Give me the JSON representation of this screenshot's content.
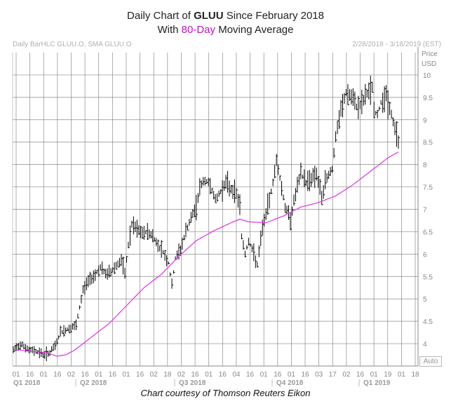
{
  "title": {
    "line1_pre": "Daily Chart of ",
    "ticker": "GLUU",
    "line1_post": " Since February 2018",
    "line2_pre": "With ",
    "highlight": "80-Day",
    "line2_post": " Moving Average"
  },
  "header": {
    "left": "Daily BarHLC GLUU.O, SMA GLUU.O",
    "right": "2/28/2018 - 3/18/2019 (EST)"
  },
  "axis": {
    "price_label": "Price",
    "currency_label": "USD",
    "auto_label": "Auto"
  },
  "caption": "Chart courtesy of Thomson Reuters Eikon",
  "colors": {
    "price_bars": "#000000",
    "sma": "#e040e0",
    "grid": "#8a8a8a",
    "highlight_text": "#c013c0"
  },
  "chart_data": {
    "type": "line",
    "chart_style": "ohlc-bars with moving average",
    "ylim": [
      3.5,
      10.5
    ],
    "yticks": [
      4,
      4.5,
      5,
      5.5,
      6,
      6.5,
      7,
      7.5,
      8,
      8.5,
      9,
      9.5,
      10
    ],
    "ytick_labels": [
      "4",
      "4.5",
      "5",
      "5.5",
      "6",
      "6.5",
      "7",
      "7.5",
      "8",
      "8.5",
      "9",
      "9.5",
      "10"
    ],
    "xtick_labels": [
      "01",
      "16",
      "01",
      "16",
      "02",
      "16",
      "01",
      "16",
      "01",
      "16",
      "02",
      "18",
      "02",
      "16",
      "01",
      "16",
      "04",
      "16",
      "01",
      "16",
      "01",
      "16",
      "03",
      "17",
      "02",
      "16",
      "01",
      "19",
      "01",
      "18"
    ],
    "quarter_labels": [
      "Q1 2018",
      "Q2 2018",
      "Q3 2018",
      "Q4 2018",
      "Q1 2019"
    ],
    "grid": true,
    "series": [
      {
        "name": "GLUU.O",
        "style": "bars",
        "anchors": [
          [
            0,
            3.85
          ],
          [
            3,
            3.95
          ],
          [
            5,
            4.0
          ],
          [
            7,
            3.9
          ],
          [
            9,
            3.85
          ],
          [
            12,
            3.85
          ],
          [
            15,
            3.8
          ],
          [
            18,
            3.75
          ],
          [
            21,
            3.8
          ],
          [
            24,
            3.95
          ],
          [
            27,
            4.25
          ],
          [
            30,
            4.3
          ],
          [
            33,
            4.35
          ],
          [
            36,
            4.4
          ],
          [
            38,
            4.8
          ],
          [
            40,
            5.2
          ],
          [
            43,
            5.4
          ],
          [
            47,
            5.55
          ],
          [
            50,
            5.7
          ],
          [
            53,
            5.55
          ],
          [
            56,
            5.6
          ],
          [
            59,
            5.75
          ],
          [
            62,
            5.85
          ],
          [
            64,
            5.55
          ],
          [
            66,
            6.2
          ],
          [
            68,
            6.65
          ],
          [
            71,
            6.55
          ],
          [
            74,
            6.45
          ],
          [
            77,
            6.5
          ],
          [
            80,
            6.4
          ],
          [
            83,
            6.2
          ],
          [
            86,
            6.05
          ],
          [
            89,
            5.8
          ],
          [
            91,
            5.3
          ],
          [
            93,
            5.9
          ],
          [
            96,
            6.1
          ],
          [
            99,
            6.5
          ],
          [
            102,
            6.8
          ],
          [
            105,
            7.05
          ],
          [
            107,
            7.5
          ],
          [
            110,
            7.65
          ],
          [
            113,
            7.55
          ],
          [
            116,
            7.2
          ],
          [
            119,
            7.4
          ],
          [
            122,
            7.6
          ],
          [
            125,
            7.45
          ],
          [
            128,
            7.35
          ],
          [
            130,
            7.1
          ],
          [
            131,
            6.4
          ],
          [
            133,
            6.0
          ],
          [
            135,
            6.3
          ],
          [
            138,
            6.0
          ],
          [
            140,
            5.75
          ],
          [
            143,
            6.6
          ],
          [
            146,
            7.05
          ],
          [
            149,
            7.6
          ],
          [
            151,
            8.1
          ],
          [
            153,
            7.7
          ],
          [
            156,
            7.05
          ],
          [
            159,
            6.8
          ],
          [
            162,
            7.35
          ],
          [
            165,
            7.8
          ],
          [
            168,
            7.6
          ],
          [
            171,
            7.7
          ],
          [
            174,
            7.8
          ],
          [
            177,
            7.25
          ],
          [
            179,
            7.6
          ],
          [
            181,
            7.8
          ],
          [
            183,
            7.9
          ],
          [
            185,
            8.6
          ],
          [
            188,
            9.2
          ],
          [
            191,
            9.6
          ],
          [
            194,
            9.5
          ],
          [
            197,
            9.3
          ],
          [
            200,
            9.35
          ],
          [
            203,
            9.6
          ],
          [
            205,
            9.65
          ],
          [
            206,
            9.75
          ],
          [
            207,
            9.2
          ],
          [
            209,
            9.1
          ],
          [
            211,
            9.4
          ],
          [
            214,
            9.55
          ],
          [
            217,
            9.1
          ],
          [
            219,
            8.8
          ],
          [
            221,
            8.6
          ]
        ],
        "last_bar": {
          "index": 221,
          "high": 8.65,
          "low": 8.35,
          "close": 8.6
        }
      },
      {
        "name": "SMA GLUU.O",
        "style": "line",
        "anchors": [
          [
            0,
            3.87
          ],
          [
            20,
            3.79
          ],
          [
            25,
            3.72
          ],
          [
            30,
            3.75
          ],
          [
            35,
            3.85
          ],
          [
            45,
            4.15
          ],
          [
            55,
            4.45
          ],
          [
            65,
            4.85
          ],
          [
            75,
            5.25
          ],
          [
            85,
            5.55
          ],
          [
            95,
            5.95
          ],
          [
            105,
            6.3
          ],
          [
            115,
            6.52
          ],
          [
            125,
            6.7
          ],
          [
            130,
            6.78
          ],
          [
            135,
            6.72
          ],
          [
            145,
            6.7
          ],
          [
            155,
            6.85
          ],
          [
            165,
            7.05
          ],
          [
            175,
            7.15
          ],
          [
            185,
            7.3
          ],
          [
            195,
            7.55
          ],
          [
            205,
            7.85
          ],
          [
            215,
            8.15
          ],
          [
            221,
            8.28
          ]
        ]
      }
    ]
  }
}
